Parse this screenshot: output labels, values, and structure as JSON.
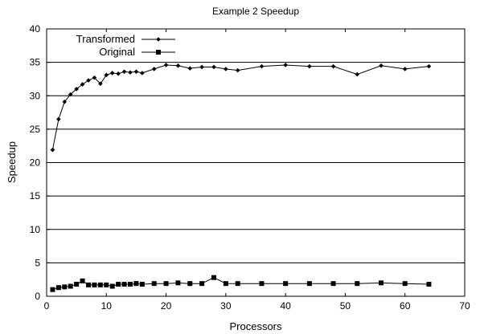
{
  "chart_data": {
    "type": "line",
    "title": "Example 2 Speedup",
    "xlabel": "Processors",
    "ylabel": "Speedup",
    "xlim": [
      0,
      70
    ],
    "ylim": [
      0,
      40
    ],
    "xticks": [
      0,
      10,
      20,
      30,
      40,
      50,
      60,
      70
    ],
    "yticks": [
      0,
      5,
      10,
      15,
      20,
      25,
      30,
      35,
      40
    ],
    "grid": "horizontal",
    "legend_position": "top-left",
    "series": [
      {
        "name": "Transformed",
        "marker": "diamond",
        "color": "#000000",
        "x": [
          1,
          2,
          3,
          4,
          5,
          6,
          7,
          8,
          9,
          10,
          11,
          12,
          13,
          14,
          15,
          16,
          18,
          20,
          22,
          24,
          26,
          28,
          30,
          32,
          36,
          40,
          44,
          48,
          52,
          56,
          60,
          64
        ],
        "y": [
          21.9,
          26.5,
          29.1,
          30.2,
          31.0,
          31.7,
          32.3,
          32.7,
          31.8,
          33.1,
          33.4,
          33.3,
          33.6,
          33.5,
          33.6,
          33.4,
          34.0,
          34.6,
          34.5,
          34.1,
          34.3,
          34.3,
          34.0,
          33.8,
          34.4,
          34.6,
          34.4,
          34.4,
          33.2,
          34.5,
          34.0,
          34.4
        ]
      },
      {
        "name": "Original",
        "marker": "square",
        "color": "#000000",
        "x": [
          1,
          2,
          3,
          4,
          5,
          6,
          7,
          8,
          9,
          10,
          11,
          12,
          13,
          14,
          15,
          16,
          18,
          20,
          22,
          24,
          26,
          28,
          30,
          32,
          36,
          40,
          44,
          48,
          52,
          56,
          60,
          64
        ],
        "y": [
          1.0,
          1.3,
          1.4,
          1.5,
          1.8,
          2.3,
          1.7,
          1.7,
          1.7,
          1.7,
          1.5,
          1.8,
          1.8,
          1.8,
          1.9,
          1.8,
          1.9,
          1.9,
          2.0,
          1.9,
          1.9,
          2.8,
          1.9,
          1.9,
          1.9,
          1.9,
          1.9,
          1.9,
          1.9,
          2.0,
          1.9,
          1.8
        ]
      }
    ]
  }
}
